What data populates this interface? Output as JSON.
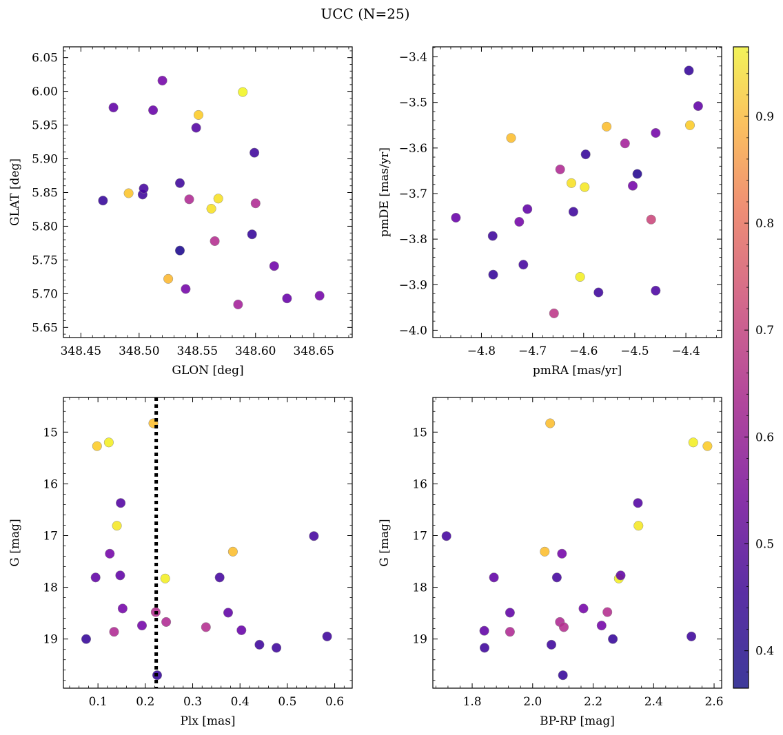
{
  "figure": {
    "title": "UCC (N=25)"
  },
  "colors": {
    "colormap": "plasma",
    "marker_edge": "#8a8a8a",
    "vline": "#000000"
  },
  "colorbar": {
    "label": "",
    "range": [
      0.365,
      0.965
    ],
    "ticks": [
      0.4,
      0.5,
      0.6,
      0.7,
      0.8,
      0.9
    ],
    "tick_labels": [
      "0.4",
      "0.5",
      "0.6",
      "0.7",
      "0.8",
      "0.9"
    ]
  },
  "chart_data": [
    {
      "id": "glon-glat",
      "type": "scatter",
      "xlabel": "GLON [deg]",
      "ylabel": "GLAT [deg]",
      "xlim": [
        348.435,
        348.683
      ],
      "ylim": [
        5.635,
        6.066
      ],
      "y_inverted": false,
      "xticks": [
        348.45,
        348.5,
        348.55,
        348.6,
        348.65
      ],
      "xtick_labels": [
        "348.45",
        "348.50",
        "348.55",
        "348.60",
        "348.65"
      ],
      "yticks": [
        5.65,
        5.7,
        5.75,
        5.8,
        5.85,
        5.9,
        5.95,
        6.0,
        6.05
      ],
      "ytick_labels": [
        "5.65",
        "5.70",
        "5.75",
        "5.80",
        "5.85",
        "5.90",
        "5.95",
        "6.00",
        "6.05"
      ],
      "points": [
        {
          "x": 348.469,
          "y": 5.838,
          "c": 0.41
        },
        {
          "x": 348.478,
          "y": 5.976,
          "c": 0.47
        },
        {
          "x": 348.491,
          "y": 5.849,
          "c": 0.89
        },
        {
          "x": 348.503,
          "y": 5.847,
          "c": 0.42
        },
        {
          "x": 348.504,
          "y": 5.856,
          "c": 0.43
        },
        {
          "x": 348.512,
          "y": 5.972,
          "c": 0.48
        },
        {
          "x": 348.52,
          "y": 6.016,
          "c": 0.5
        },
        {
          "x": 348.525,
          "y": 5.722,
          "c": 0.87
        },
        {
          "x": 348.535,
          "y": 5.764,
          "c": 0.38
        },
        {
          "x": 348.535,
          "y": 5.864,
          "c": 0.42
        },
        {
          "x": 348.54,
          "y": 5.707,
          "c": 0.5
        },
        {
          "x": 348.543,
          "y": 5.84,
          "c": 0.6
        },
        {
          "x": 348.549,
          "y": 5.946,
          "c": 0.45
        },
        {
          "x": 348.551,
          "y": 5.965,
          "c": 0.9
        },
        {
          "x": 348.562,
          "y": 5.826,
          "c": 0.93
        },
        {
          "x": 348.565,
          "y": 5.778,
          "c": 0.61
        },
        {
          "x": 348.568,
          "y": 5.841,
          "c": 0.93
        },
        {
          "x": 348.585,
          "y": 5.684,
          "c": 0.58
        },
        {
          "x": 348.589,
          "y": 5.999,
          "c": 0.96
        },
        {
          "x": 348.597,
          "y": 5.788,
          "c": 0.41
        },
        {
          "x": 348.599,
          "y": 5.909,
          "c": 0.42
        },
        {
          "x": 348.6,
          "y": 5.834,
          "c": 0.6
        },
        {
          "x": 348.616,
          "y": 5.741,
          "c": 0.49
        },
        {
          "x": 348.627,
          "y": 5.693,
          "c": 0.48
        },
        {
          "x": 348.655,
          "y": 5.697,
          "c": 0.5
        }
      ]
    },
    {
      "id": "pmra-pmde",
      "type": "scatter",
      "xlabel": "pmRA [mas/yr]",
      "ylabel": "pmDE [mas/yr]",
      "xlim": [
        -4.895,
        -4.33
      ],
      "ylim": [
        -4.016,
        -3.378
      ],
      "y_inverted": false,
      "xticks": [
        -4.8,
        -4.7,
        -4.6,
        -4.5,
        -4.4
      ],
      "xtick_labels": [
        "−4.8",
        "−4.7",
        "−4.6",
        "−4.5",
        "−4.4"
      ],
      "yticks": [
        -4.0,
        -3.9,
        -3.8,
        -3.7,
        -3.6,
        -3.5,
        -3.4
      ],
      "ytick_labels": [
        "−4.0",
        "−3.9",
        "−3.8",
        "−3.7",
        "−3.6",
        "−3.5",
        "−3.4"
      ],
      "points": [
        {
          "x": -4.85,
          "y": -3.753,
          "c": 0.48
        },
        {
          "x": -4.778,
          "y": -3.793,
          "c": 0.42
        },
        {
          "x": -4.777,
          "y": -3.878,
          "c": 0.41
        },
        {
          "x": -4.742,
          "y": -3.578,
          "c": 0.88
        },
        {
          "x": -4.726,
          "y": -3.762,
          "c": 0.5
        },
        {
          "x": -4.718,
          "y": -3.856,
          "c": 0.43
        },
        {
          "x": -4.71,
          "y": -3.734,
          "c": 0.47
        },
        {
          "x": -4.658,
          "y": -3.963,
          "c": 0.63
        },
        {
          "x": -4.646,
          "y": -3.647,
          "c": 0.6
        },
        {
          "x": -4.624,
          "y": -3.677,
          "c": 0.93
        },
        {
          "x": -4.62,
          "y": -3.74,
          "c": 0.42
        },
        {
          "x": -4.607,
          "y": -3.883,
          "c": 0.95
        },
        {
          "x": -4.598,
          "y": -3.686,
          "c": 0.94
        },
        {
          "x": -4.596,
          "y": -3.614,
          "c": 0.41
        },
        {
          "x": -4.571,
          "y": -3.917,
          "c": 0.42
        },
        {
          "x": -4.555,
          "y": -3.553,
          "c": 0.88
        },
        {
          "x": -4.519,
          "y": -3.59,
          "c": 0.58
        },
        {
          "x": -4.504,
          "y": -3.683,
          "c": 0.5
        },
        {
          "x": -4.495,
          "y": -3.657,
          "c": 0.39
        },
        {
          "x": -4.468,
          "y": -3.757,
          "c": 0.66
        },
        {
          "x": -4.459,
          "y": -3.913,
          "c": 0.44
        },
        {
          "x": -4.459,
          "y": -3.567,
          "c": 0.5
        },
        {
          "x": -4.394,
          "y": -3.43,
          "c": 0.41
        },
        {
          "x": -4.392,
          "y": -3.55,
          "c": 0.9
        },
        {
          "x": -4.376,
          "y": -3.508,
          "c": 0.47
        }
      ]
    },
    {
      "id": "plx-g",
      "type": "scatter",
      "xlabel": "Plx [mas]",
      "ylabel": "G [mag]",
      "xlim": [
        0.027,
        0.637
      ],
      "ylim": [
        14.33,
        19.95
      ],
      "y_inverted": true,
      "vline": {
        "x": 0.223,
        "style": "dotted"
      },
      "xticks": [
        0.1,
        0.2,
        0.3,
        0.4,
        0.5,
        0.6
      ],
      "xtick_labels": [
        "0.1",
        "0.2",
        "0.3",
        "0.4",
        "0.5",
        "0.6"
      ],
      "yticks": [
        15,
        16,
        17,
        18,
        19
      ],
      "ytick_labels": [
        "15",
        "16",
        "17",
        "18",
        "19"
      ],
      "points": [
        {
          "x": 0.075,
          "y": 19.0,
          "c": 0.41
        },
        {
          "x": 0.095,
          "y": 17.81,
          "c": 0.47
        },
        {
          "x": 0.098,
          "y": 15.27,
          "c": 0.9
        },
        {
          "x": 0.123,
          "y": 15.2,
          "c": 0.95
        },
        {
          "x": 0.125,
          "y": 17.35,
          "c": 0.5
        },
        {
          "x": 0.134,
          "y": 18.86,
          "c": 0.6
        },
        {
          "x": 0.14,
          "y": 16.81,
          "c": 0.94
        },
        {
          "x": 0.147,
          "y": 17.77,
          "c": 0.47
        },
        {
          "x": 0.148,
          "y": 16.37,
          "c": 0.45
        },
        {
          "x": 0.152,
          "y": 18.41,
          "c": 0.5
        },
        {
          "x": 0.193,
          "y": 18.74,
          "c": 0.5
        },
        {
          "x": 0.217,
          "y": 14.83,
          "c": 0.88
        },
        {
          "x": 0.222,
          "y": 18.48,
          "c": 0.61
        },
        {
          "x": 0.225,
          "y": 19.7,
          "c": 0.41
        },
        {
          "x": 0.242,
          "y": 17.83,
          "c": 0.95
        },
        {
          "x": 0.244,
          "y": 18.67,
          "c": 0.6
        },
        {
          "x": 0.328,
          "y": 18.77,
          "c": 0.61
        },
        {
          "x": 0.357,
          "y": 17.81,
          "c": 0.43
        },
        {
          "x": 0.375,
          "y": 18.49,
          "c": 0.47
        },
        {
          "x": 0.385,
          "y": 17.31,
          "c": 0.88
        },
        {
          "x": 0.403,
          "y": 18.83,
          "c": 0.48
        },
        {
          "x": 0.441,
          "y": 19.11,
          "c": 0.42
        },
        {
          "x": 0.477,
          "y": 19.17,
          "c": 0.42
        },
        {
          "x": 0.556,
          "y": 17.01,
          "c": 0.43
        },
        {
          "x": 0.584,
          "y": 18.95,
          "c": 0.42
        }
      ]
    },
    {
      "id": "bprp-g",
      "type": "scatter",
      "xlabel": "BP-RP [mag]",
      "ylabel": "G [mag]",
      "xlim": [
        1.67,
        2.625
      ],
      "ylim": [
        14.33,
        19.95
      ],
      "y_inverted": true,
      "xticks": [
        1.8,
        2.0,
        2.2,
        2.4,
        2.6
      ],
      "xtick_labels": [
        "1.8",
        "2.0",
        "2.2",
        "2.4",
        "2.6"
      ],
      "yticks": [
        15,
        16,
        17,
        18,
        19
      ],
      "ytick_labels": [
        "15",
        "16",
        "17",
        "18",
        "19"
      ],
      "points": [
        {
          "x": 1.715,
          "y": 17.01,
          "c": 0.43
        },
        {
          "x": 1.84,
          "y": 18.84,
          "c": 0.47
        },
        {
          "x": 1.841,
          "y": 19.17,
          "c": 0.42
        },
        {
          "x": 1.872,
          "y": 17.81,
          "c": 0.47
        },
        {
          "x": 1.925,
          "y": 18.49,
          "c": 0.47
        },
        {
          "x": 1.925,
          "y": 18.86,
          "c": 0.6
        },
        {
          "x": 2.04,
          "y": 17.31,
          "c": 0.88
        },
        {
          "x": 2.058,
          "y": 14.83,
          "c": 0.88
        },
        {
          "x": 2.062,
          "y": 19.11,
          "c": 0.42
        },
        {
          "x": 2.08,
          "y": 17.81,
          "c": 0.43
        },
        {
          "x": 2.09,
          "y": 18.67,
          "c": 0.6
        },
        {
          "x": 2.097,
          "y": 17.35,
          "c": 0.5
        },
        {
          "x": 2.1,
          "y": 19.7,
          "c": 0.41
        },
        {
          "x": 2.103,
          "y": 18.77,
          "c": 0.61
        },
        {
          "x": 2.168,
          "y": 18.41,
          "c": 0.5
        },
        {
          "x": 2.228,
          "y": 18.74,
          "c": 0.5
        },
        {
          "x": 2.247,
          "y": 18.48,
          "c": 0.61
        },
        {
          "x": 2.265,
          "y": 19.0,
          "c": 0.41
        },
        {
          "x": 2.285,
          "y": 17.83,
          "c": 0.95
        },
        {
          "x": 2.291,
          "y": 17.77,
          "c": 0.47
        },
        {
          "x": 2.348,
          "y": 16.37,
          "c": 0.45
        },
        {
          "x": 2.35,
          "y": 16.81,
          "c": 0.94
        },
        {
          "x": 2.525,
          "y": 18.95,
          "c": 0.42
        },
        {
          "x": 2.531,
          "y": 15.2,
          "c": 0.95
        },
        {
          "x": 2.578,
          "y": 15.27,
          "c": 0.9
        }
      ]
    }
  ]
}
